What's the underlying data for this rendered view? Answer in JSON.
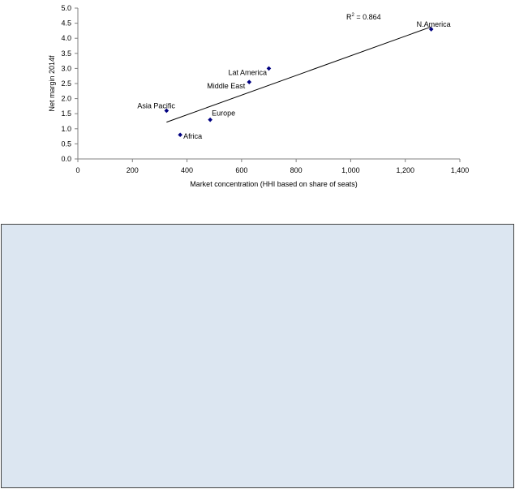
{
  "chart_data": {
    "type": "scatter",
    "title": "",
    "xlabel": "Market concentration (HHI based on share of seats)",
    "ylabel": "Net margin 2014f",
    "xlim": [
      0,
      1400
    ],
    "ylim": [
      0,
      5.0
    ],
    "x_ticks": [
      0,
      200,
      400,
      600,
      800,
      1000,
      1200,
      1400
    ],
    "x_tick_labels": [
      "0",
      "200",
      "400",
      "600",
      "800",
      "1,000",
      "1,200",
      "1,400"
    ],
    "y_ticks": [
      0,
      0.5,
      1.0,
      1.5,
      2.0,
      2.5,
      3.0,
      3.5,
      4.0,
      4.5,
      5.0
    ],
    "y_tick_labels": [
      "0.0",
      "0.5",
      "1.0",
      "1.5",
      "2.0",
      "2.5",
      "3.0",
      "3.5",
      "4.0",
      "4.5",
      "5.0"
    ],
    "grid": false,
    "points": [
      {
        "label": "N.America",
        "x": 1295,
        "y": 4.3
      },
      {
        "label": "Lat America",
        "x": 700,
        "y": 3.0
      },
      {
        "label": "Middle East",
        "x": 628,
        "y": 2.55
      },
      {
        "label": "Asia Pacific",
        "x": 325,
        "y": 1.6
      },
      {
        "label": "Europe",
        "x": 485,
        "y": 1.3
      },
      {
        "label": "Africa",
        "x": 375,
        "y": 0.8
      }
    ],
    "trendline": {
      "x": [
        325,
        1295
      ],
      "y": [
        1.22,
        4.38
      ]
    },
    "annotation": {
      "r2_prefix": "R",
      "r2_sup": "2",
      "r2_suffix": " = 0.864"
    },
    "marker_color": "#000080"
  },
  "panel": {
    "color": "#dce6f1"
  }
}
